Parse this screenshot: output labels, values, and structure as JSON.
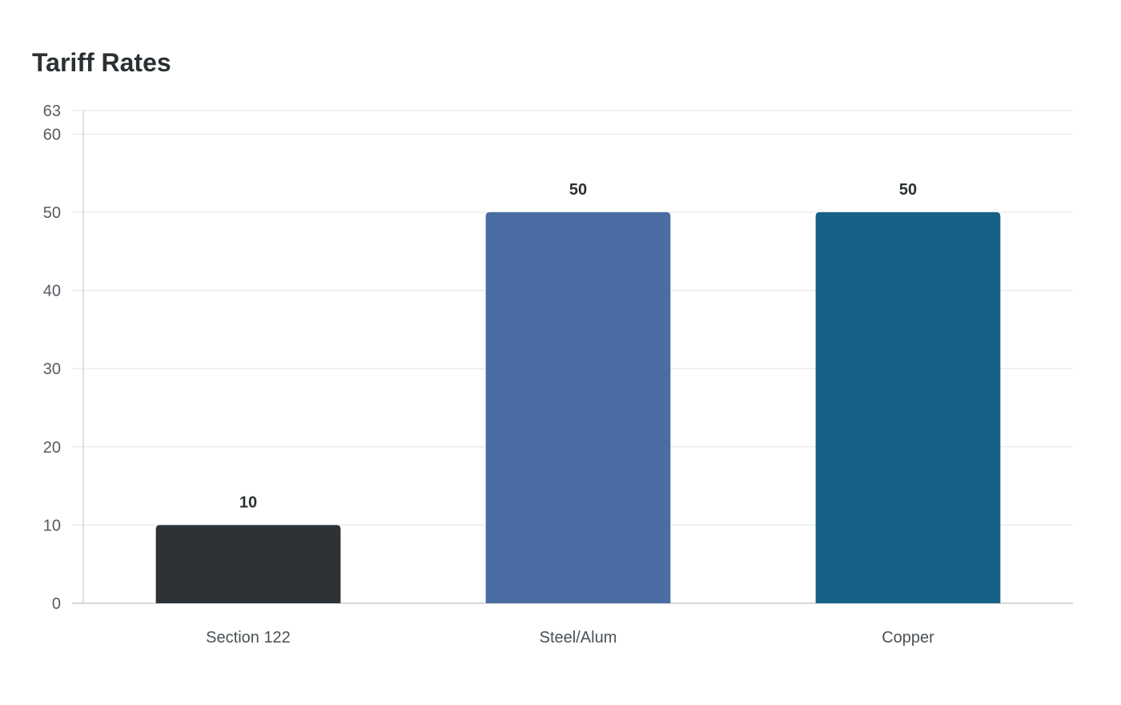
{
  "chart_data": {
    "type": "bar",
    "title": "Tariff Rates",
    "xlabel": "",
    "ylabel": "",
    "categories": [
      "Section 122",
      "Steel/Alum",
      "Copper"
    ],
    "values": [
      10,
      50,
      50
    ],
    "value_labels": [
      "10",
      "50",
      "50"
    ],
    "colors": [
      "#2c3236",
      "#4a6da3",
      "#176087"
    ],
    "ylim": [
      0,
      63
    ],
    "yticks": [
      0,
      10,
      20,
      30,
      40,
      50,
      60,
      63
    ],
    "ytick_labels": [
      "0",
      "10",
      "20",
      "30",
      "40",
      "50",
      "60",
      "63"
    ],
    "grid": true,
    "legend": "none"
  }
}
